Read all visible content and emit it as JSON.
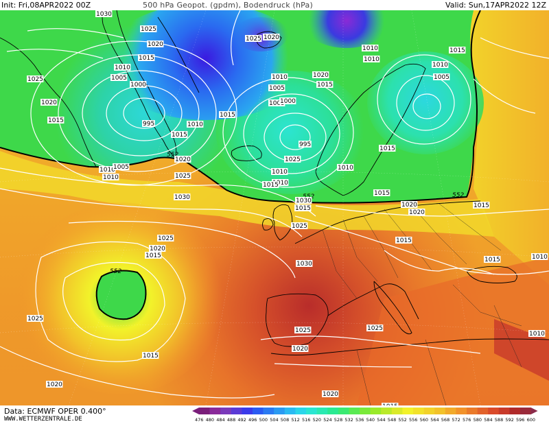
{
  "header": {
    "init": "Init: Fri,08APR2022 00Z",
    "title": "500 hPa Geopot. (gpdm), Bodendruck (hPa)",
    "valid": "Valid: Sun,17APR2022 12Z"
  },
  "footer": {
    "data_line": "Data: ECMWF OPER 0.400°",
    "site": "WWW.WETTERZENTRALE.DE"
  },
  "colorbar": {
    "labels": [
      "476",
      "480",
      "484",
      "488",
      "492",
      "496",
      "500",
      "504",
      "508",
      "512",
      "516",
      "520",
      "524",
      "528",
      "532",
      "536",
      "540",
      "544",
      "548",
      "552",
      "556",
      "560",
      "564",
      "568",
      "572",
      "576",
      "580",
      "584",
      "588",
      "592",
      "596",
      "600"
    ],
    "colors": [
      "#7a1e7a",
      "#8a2a9a",
      "#7a3aba",
      "#5a3ad6",
      "#3a3aea",
      "#2a5af2",
      "#2a7af2",
      "#2a9af2",
      "#2abaf2",
      "#2ad6ea",
      "#2ae6d2",
      "#2aeab2",
      "#2aea92",
      "#3aea72",
      "#5aea52",
      "#7aea3a",
      "#9aea2a",
      "#baea2a",
      "#daea2a",
      "#f2f22a",
      "#f2e22a",
      "#f2d22a",
      "#f2c22a",
      "#f2aa2a",
      "#f2922a",
      "#ea7a2a",
      "#e2622a",
      "#da4a2a",
      "#c83a2a",
      "#b02a2a",
      "#9a2a3a",
      "#8a2a4a"
    ]
  },
  "map": {
    "isobar_labels": [
      {
        "text": "1030"
      },
      {
        "text": "1025"
      },
      {
        "text": "1020"
      },
      {
        "text": "1015"
      },
      {
        "text": "1010"
      },
      {
        "text": "1005"
      },
      {
        "text": "1000"
      },
      {
        "text": "995"
      },
      {
        "text": "1025"
      },
      {
        "text": "1020"
      },
      {
        "text": "1015"
      },
      {
        "text": "1020"
      },
      {
        "text": "1025"
      },
      {
        "text": "1015"
      },
      {
        "text": "1010"
      },
      {
        "text": "1010"
      },
      {
        "text": "1015"
      },
      {
        "text": "1005"
      },
      {
        "text": "1010"
      },
      {
        "text": "1005"
      },
      {
        "text": "1000"
      },
      {
        "text": "995"
      },
      {
        "text": "1020"
      },
      {
        "text": "1015"
      },
      {
        "text": "1010"
      },
      {
        "text": "1025"
      },
      {
        "text": "1030"
      },
      {
        "text": "1025"
      },
      {
        "text": "1020"
      },
      {
        "text": "1015"
      },
      {
        "text": "1025"
      },
      {
        "text": "1015"
      },
      {
        "text": "1020"
      },
      {
        "text": "1005"
      },
      {
        "text": "1010"
      },
      {
        "text": "1015"
      },
      {
        "text": "1020"
      },
      {
        "text": "1015"
      },
      {
        "text": "1030"
      },
      {
        "text": "1025"
      },
      {
        "text": "1030"
      },
      {
        "text": "1025"
      },
      {
        "text": "1020"
      },
      {
        "text": "1025"
      },
      {
        "text": "1020"
      },
      {
        "text": "1015"
      },
      {
        "text": "1010"
      },
      {
        "text": "1015"
      },
      {
        "text": "1010"
      },
      {
        "text": "1025"
      },
      {
        "text": "1020"
      },
      {
        "text": "1015"
      },
      {
        "text": "1010"
      },
      {
        "text": "1005"
      },
      {
        "text": "1010"
      },
      {
        "text": "1010"
      },
      {
        "text": "1010"
      },
      {
        "text": "1015"
      },
      {
        "text": "1020"
      },
      {
        "text": "1015"
      },
      {
        "text": "1015"
      },
      {
        "text": "1010"
      },
      {
        "text": "1015"
      }
    ],
    "contour_552_labels": [
      "552",
      "552",
      "552",
      "552"
    ],
    "colors": {
      "ocean_green": "#3ed84a",
      "blue_low": "#2aa6f0",
      "deep_blue": "#3a2ad6",
      "yellow": "#f2e62a",
      "orange": "#f2a22a",
      "red_orange": "#e05a2a",
      "dark_red": "#b82a2a",
      "contour_line": "#000000",
      "isobar_line": "#ffffff"
    }
  }
}
